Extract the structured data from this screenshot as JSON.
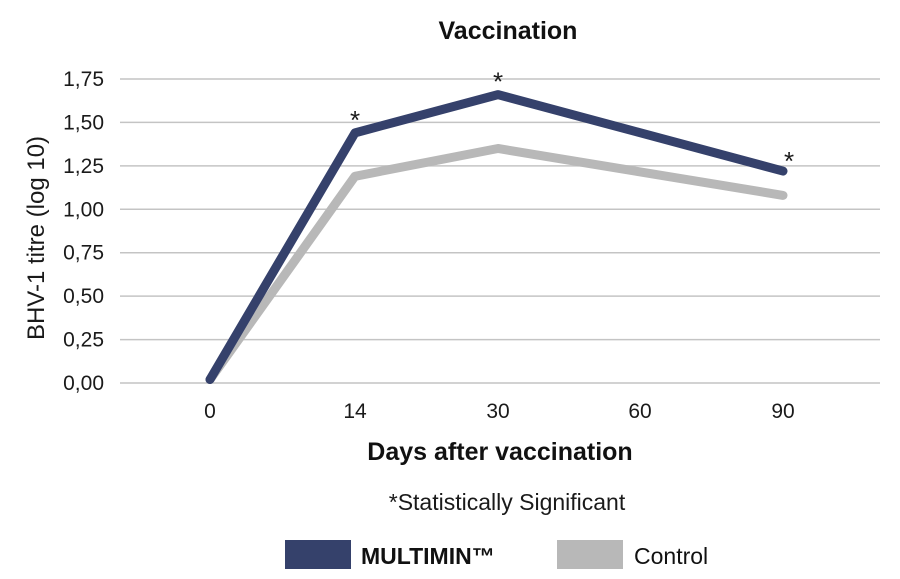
{
  "chart_data": {
    "type": "line",
    "title": "Vaccination",
    "xlabel": "Days after vaccination",
    "ylabel": "BHV-1  titre (log 10)",
    "categories": [
      "0",
      "14",
      "30",
      "60",
      "90"
    ],
    "y_ticks": [
      "0,00",
      "0,25",
      "0,50",
      "0,75",
      "1,00",
      "1,25",
      "1,50",
      "1,75"
    ],
    "ylim": [
      0,
      1.75
    ],
    "grid": true,
    "series": [
      {
        "name": "MULTIMIN™",
        "color": "#35416b",
        "points": [
          {
            "x": "0",
            "y": 0.02
          },
          {
            "x": "14",
            "y": 1.44
          },
          {
            "x": "30",
            "y": 1.66
          },
          {
            "x": "90",
            "y": 1.22
          }
        ]
      },
      {
        "name": "Control",
        "color": "#b8b8b8",
        "points": [
          {
            "x": "0",
            "y": 0.02
          },
          {
            "x": "14",
            "y": 1.19
          },
          {
            "x": "30",
            "y": 1.35
          },
          {
            "x": "90",
            "y": 1.08
          }
        ]
      }
    ],
    "annotations": [
      {
        "text": "*",
        "x": "14",
        "y": 1.44
      },
      {
        "text": "*",
        "x": "30",
        "y": 1.66
      },
      {
        "text": "*",
        "x": "90",
        "y": 1.22
      }
    ],
    "footnote": "*Statistically Significant",
    "legend_position": "bottom"
  }
}
